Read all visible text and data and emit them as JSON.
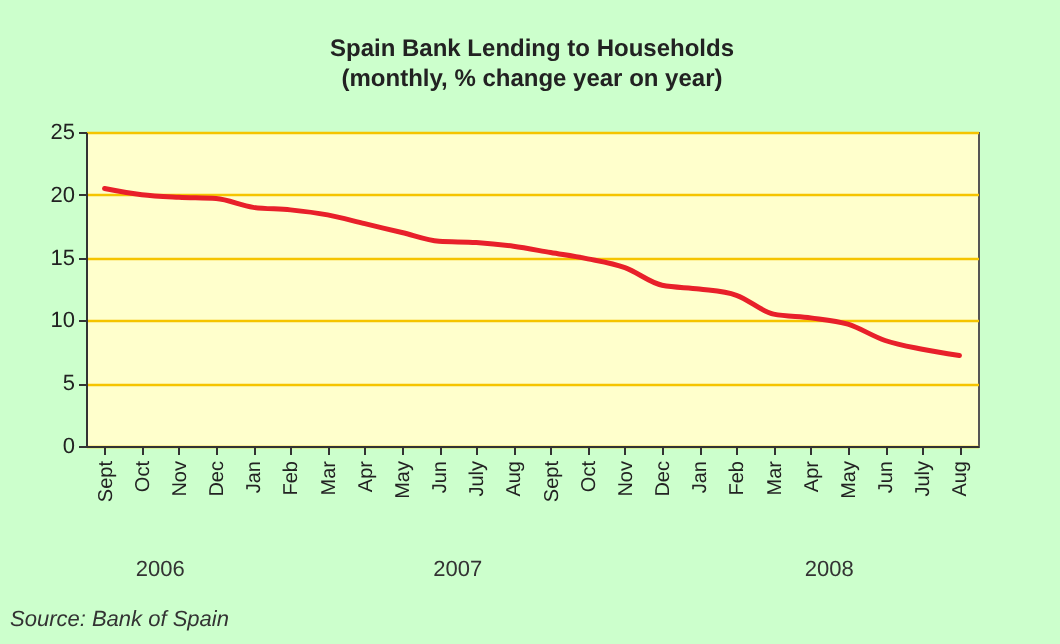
{
  "chart_data": {
    "type": "line",
    "title": "Spain Bank Lending to Households",
    "subtitle": "(monthly, % change year on year)",
    "categories": [
      "Sept",
      "Oct",
      "Nov",
      "Dec",
      "Jan",
      "Feb",
      "Mar",
      "Apr",
      "May",
      "Jun",
      "July",
      "Aug",
      "Sept",
      "Oct",
      "Nov",
      "Dec",
      "Jan",
      "Feb",
      "Mar",
      "Apr",
      "May",
      "Jun",
      "July",
      "Aug"
    ],
    "series": [
      {
        "color": "#e8202a",
        "values": [
          20.5,
          20.0,
          19.8,
          19.7,
          19.0,
          18.8,
          18.4,
          17.7,
          17.0,
          16.3,
          16.2,
          15.9,
          15.4,
          14.9,
          14.2,
          12.8,
          12.5,
          12.0,
          10.5,
          10.2,
          9.7,
          8.4,
          7.7,
          7.2
        ]
      }
    ],
    "ylim": [
      0,
      25
    ],
    "yticks": [
      0,
      5,
      10,
      15,
      20,
      25
    ],
    "grid": "y",
    "marker": "none",
    "line_style": "solid",
    "annotations": [
      "2006",
      "2007",
      "2008",
      "Source: Bank of Spain"
    ]
  }
}
